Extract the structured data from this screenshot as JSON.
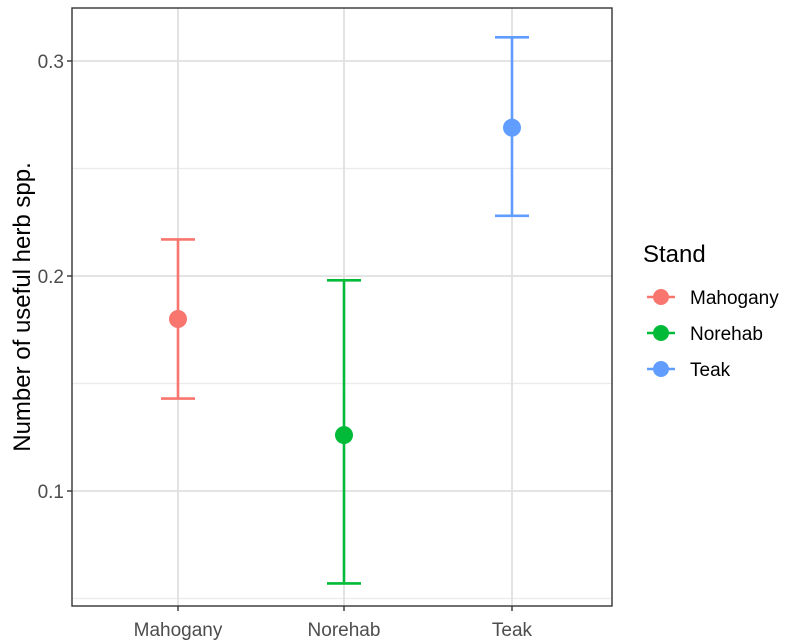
{
  "chart_data": {
    "type": "scatter",
    "subtype": "point-range",
    "title": "",
    "xlabel": "",
    "ylabel": "Number of useful herb spp.",
    "categories": [
      "Mahogany",
      "Norehab",
      "Teak"
    ],
    "ylim": [
      0.047,
      0.33
    ],
    "yticks": [
      0.1,
      0.2,
      0.3
    ],
    "yticks_labels": [
      "0.1",
      "0.2",
      "0.3"
    ],
    "grid": true,
    "legend": {
      "title": "Stand",
      "placement": "right"
    },
    "series": [
      {
        "name": "Mahogany",
        "color": "#F8766D",
        "x": "Mahogany",
        "y": 0.18,
        "ymin": 0.143,
        "ymax": 0.217
      },
      {
        "name": "Norehab",
        "color": "#00BA38",
        "x": "Norehab",
        "y": 0.126,
        "ymin": 0.057,
        "ymax": 0.198
      },
      {
        "name": "Teak",
        "color": "#619CFF",
        "x": "Teak",
        "y": 0.269,
        "ymin": 0.228,
        "ymax": 0.311
      }
    ]
  }
}
